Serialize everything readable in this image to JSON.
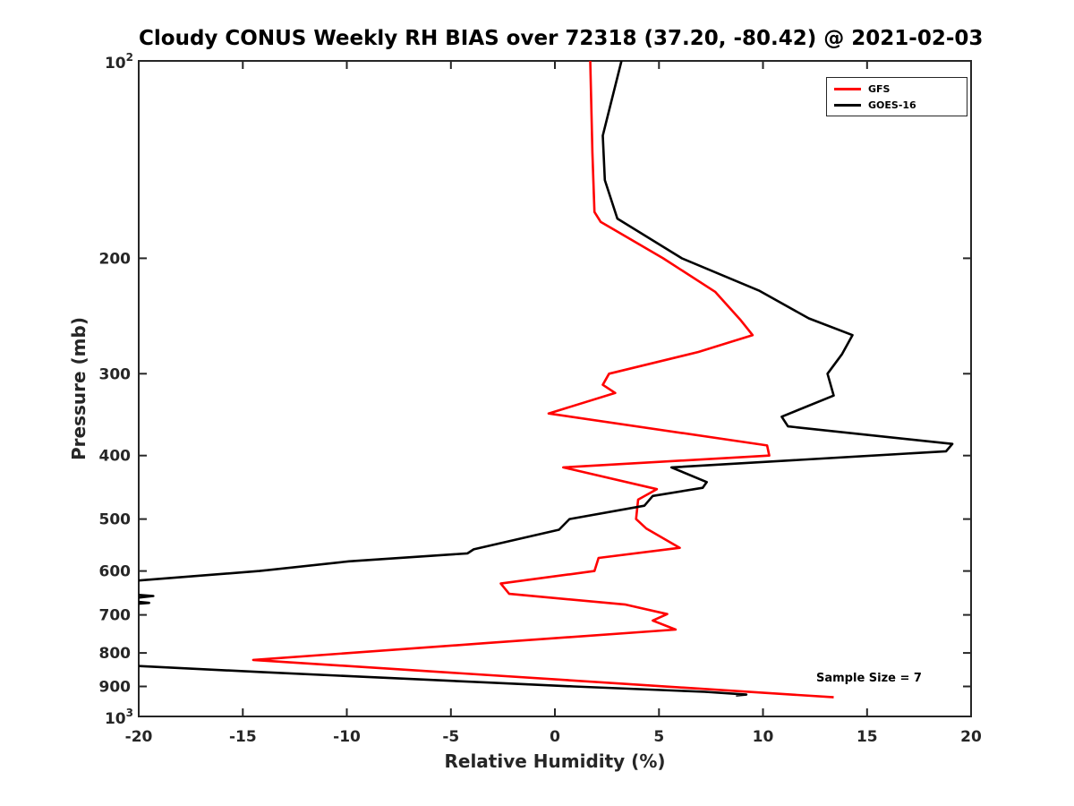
{
  "page": {
    "background": "#ffffff"
  },
  "styles": {
    "axis_color": "#262626",
    "title_color": "#000000"
  },
  "chart_data": {
    "type": "line",
    "title": "Cloudy CONUS Weekly RH BIAS over 72318 (37.20, -80.42) @ 2021-02-03",
    "xlabel": "Relative Humidity (%)",
    "ylabel": "Pressure (mb)",
    "annotation": "Sample Size = 7",
    "x_axis": {
      "min": -20,
      "max": 20,
      "ticks": [
        -20,
        -15,
        -10,
        -5,
        0,
        5,
        10,
        15,
        20
      ]
    },
    "y_axis": {
      "scale": "log",
      "min": 100,
      "max": 1000,
      "direction": "increasing-down",
      "major_ticks": [
        100,
        200,
        300,
        400,
        500,
        600,
        700,
        800,
        900,
        1000
      ],
      "labeled_ticks": [
        200,
        300,
        400,
        500,
        600,
        700,
        800,
        900
      ],
      "endpoint_labels": [
        {
          "value": 100,
          "base": "10",
          "exp": "2"
        },
        {
          "value": 1000,
          "base": "10",
          "exp": "3"
        }
      ]
    },
    "legend": {
      "position": "top-right",
      "entries": [
        "GFS",
        "GOES-16"
      ]
    },
    "series": [
      {
        "name": "GFS",
        "color": "#ff0000",
        "points": [
          [
            100,
            1.7
          ],
          [
            138,
            1.8
          ],
          [
            170,
            1.9
          ],
          [
            176,
            2.2
          ],
          [
            200,
            5.2
          ],
          [
            225,
            7.7
          ],
          [
            248,
            8.9
          ],
          [
            262,
            9.5
          ],
          [
            278,
            6.9
          ],
          [
            300,
            2.6
          ],
          [
            312,
            2.3
          ],
          [
            321,
            2.9
          ],
          [
            345,
            -0.3
          ],
          [
            386,
            10.2
          ],
          [
            400,
            10.3
          ],
          [
            417,
            0.4
          ],
          [
            450,
            4.9
          ],
          [
            467,
            4.0
          ],
          [
            500,
            3.9
          ],
          [
            517,
            4.4
          ],
          [
            553,
            6.0
          ],
          [
            573,
            2.1
          ],
          [
            600,
            1.9
          ],
          [
            627,
            -2.6
          ],
          [
            650,
            -2.2
          ],
          [
            675,
            3.4
          ],
          [
            698,
            5.4
          ],
          [
            714,
            4.7
          ],
          [
            737,
            5.8
          ],
          [
            773,
            -3.3
          ],
          [
            820,
            -14.5
          ],
          [
            935,
            13.4
          ]
        ]
      },
      {
        "name": "GOES-16",
        "color": "#000000",
        "points": [
          [
            100,
            3.2
          ],
          [
            130,
            2.3
          ],
          [
            152,
            2.4
          ],
          [
            174,
            3.0
          ],
          [
            200,
            6.1
          ],
          [
            224,
            9.8
          ],
          [
            247,
            12.2
          ],
          [
            262,
            14.3
          ],
          [
            280,
            13.8
          ],
          [
            300,
            13.1
          ],
          [
            324,
            13.4
          ],
          [
            349,
            10.9
          ],
          [
            361,
            11.2
          ],
          [
            384,
            19.1
          ],
          [
            394,
            18.8
          ],
          [
            417,
            5.6
          ],
          [
            439,
            7.3
          ],
          [
            448,
            7.1
          ],
          [
            461,
            4.7
          ],
          [
            477,
            4.3
          ],
          [
            500,
            0.7
          ],
          [
            519,
            0.2
          ],
          [
            556,
            -3.9
          ],
          [
            564,
            -4.2
          ],
          [
            580,
            -9.9
          ],
          [
            600,
            -14.2
          ],
          [
            621,
            -20.2
          ],
          [
            640,
            -23.5
          ],
          [
            655,
            -19.3
          ],
          [
            664,
            -21.0
          ],
          [
            671,
            -19.5
          ],
          [
            688,
            -24.0
          ],
          [
            836,
            -20.5
          ],
          [
            856,
            -14.0
          ],
          [
            900,
            0.9
          ],
          [
            917,
            7.2
          ],
          [
            926,
            9.2
          ],
          [
            929,
            8.7
          ]
        ]
      }
    ]
  }
}
